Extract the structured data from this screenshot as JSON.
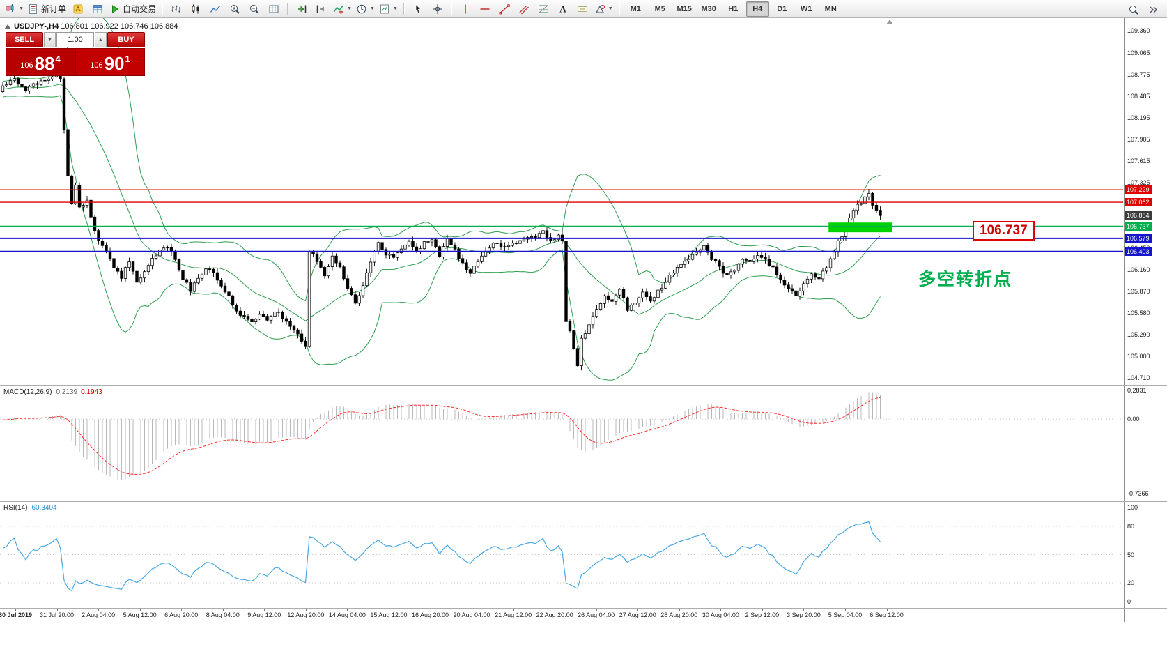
{
  "toolbar": {
    "items": [
      {
        "name": "new-chart",
        "icon": "candlechart",
        "dropdown": true
      },
      {
        "name": "new-order",
        "icon": "order",
        "label": "新订单"
      },
      {
        "name": "metaeditor",
        "icon": "editor"
      },
      {
        "name": "data-window",
        "icon": "datawin"
      },
      {
        "name": "autotrading",
        "icon": "play",
        "label": "自动交易"
      },
      {
        "sep": true
      },
      {
        "name": "bar-chart",
        "icon": "bars"
      },
      {
        "name": "candlestick-chart",
        "icon": "candles"
      },
      {
        "name": "line-chart",
        "icon": "linechart"
      },
      {
        "name": "zoom-in",
        "icon": "zoomin"
      },
      {
        "name": "zoom-out",
        "icon": "zoomout"
      },
      {
        "name": "tile-windows",
        "icon": "grid"
      },
      {
        "sep": true
      },
      {
        "name": "auto-scroll",
        "icon": "autoscroll"
      },
      {
        "name": "chart-shift",
        "icon": "shift"
      },
      {
        "name": "indicators",
        "icon": "indicator",
        "dropdown": true
      },
      {
        "name": "periods",
        "icon": "clock",
        "dropdown": true
      },
      {
        "name": "templates",
        "icon": "template",
        "dropdown": true
      },
      {
        "sep": true
      },
      {
        "name": "cursor",
        "icon": "cursor"
      },
      {
        "name": "crosshair",
        "icon": "crosshair"
      },
      {
        "sep": true
      },
      {
        "name": "vertical-line",
        "icon": "vline"
      },
      {
        "name": "horizontal-line",
        "icon": "hline"
      },
      {
        "name": "trendline",
        "icon": "tline"
      },
      {
        "name": "equidistant-channel",
        "icon": "channel"
      },
      {
        "name": "fibonacci",
        "icon": "fibo"
      },
      {
        "name": "text",
        "icon": "textA"
      },
      {
        "name": "text-label",
        "icon": "label"
      },
      {
        "name": "arrows",
        "icon": "shapes",
        "dropdown": true
      },
      {
        "sep": true
      }
    ],
    "timeframes": [
      "M1",
      "M5",
      "M15",
      "M30",
      "H1",
      "H4",
      "D1",
      "W1",
      "MN"
    ],
    "active_timeframe": "H4",
    "right_items": [
      {
        "name": "search",
        "icon": "search"
      },
      {
        "name": "toolbar-overflow",
        "icon": "chevrons"
      }
    ]
  },
  "chart": {
    "title": "USDJPY-,H4",
    "ohlc": "106.801 106.922 106.746 106.884"
  },
  "one_click": {
    "sell_label": "SELL",
    "buy_label": "BUY",
    "volume": "1.00",
    "bid": {
      "prefix": "106",
      "big": "88",
      "sup": "4"
    },
    "ask": {
      "prefix": "106",
      "big": "90",
      "sup": "1"
    }
  },
  "annotations": {
    "callout": "106.737",
    "note": "多空转折点",
    "highlight": {
      "bar_start": 215.5,
      "bar_end": 232,
      "price_top": 106.79,
      "price_bottom": 106.66,
      "color": "#00d200"
    }
  },
  "levels": [
    {
      "price": 107.229,
      "color": "#e00000",
      "width": 1.4
    },
    {
      "price": 107.062,
      "color": "#e00000",
      "width": 1.4
    },
    {
      "price": 106.737,
      "color": "#00b050",
      "width": 2.2
    },
    {
      "price": 106.579,
      "color": "#1515cd",
      "width": 2
    },
    {
      "price": 106.403,
      "color": "#1515cd",
      "width": 2
    }
  ],
  "price_scale": {
    "ticks": [
      "109.360",
      "109.065",
      "108.775",
      "108.485",
      "108.195",
      "107.905",
      "107.615",
      "107.325",
      "107.035",
      "106.745",
      "106.450",
      "106.160",
      "105.870",
      "105.580",
      "105.290",
      "105.000",
      "104.710"
    ],
    "tags": [
      {
        "text": "107.229",
        "price": 107.229,
        "color": "#e00000"
      },
      {
        "text": "107.062",
        "price": 107.062,
        "color": "#e00000"
      },
      {
        "text": "106.884",
        "price": 106.884,
        "color": "#3c3c3c"
      },
      {
        "text": "106.737",
        "price": 106.737,
        "color": "#00b050"
      },
      {
        "text": "106.579",
        "price": 106.579,
        "color": "#1515cd"
      },
      {
        "text": "106.403",
        "price": 106.403,
        "color": "#1515cd"
      }
    ]
  },
  "time_axis": {
    "labels": [
      "30 Jul 2019",
      "31 Jul 20:00",
      "2 Aug 04:00",
      "5 Aug 12:00",
      "6 Aug 20:00",
      "8 Aug 04:00",
      "9 Aug 12:00",
      "12 Aug 20:00",
      "14 Aug 04:00",
      "15 Aug 12:00",
      "16 Aug 20:00",
      "20 Aug 04:00",
      "21 Aug 12:00",
      "22 Aug 20:00",
      "26 Aug 04:00",
      "27 Aug 12:00",
      "28 Aug 20:00",
      "30 Aug 04:00",
      "2 Sep 12:00",
      "3 Sep 20:00",
      "5 Sep 04:00",
      "6 Sep 12:00"
    ]
  },
  "chart_data": {
    "type": "candlestick",
    "symbol": "USDJPY",
    "timeframe": "H4",
    "bars": 230,
    "price_axis_range": [
      104.71,
      109.36
    ],
    "last_close": 106.884,
    "price_path_format": "[bar_index, close_price] waypoints, linearly interpolated",
    "price_path": [
      [
        0,
        108.62
      ],
      [
        3,
        108.7
      ],
      [
        6,
        108.55
      ],
      [
        9,
        108.66
      ],
      [
        12,
        108.72
      ],
      [
        14,
        108.78
      ],
      [
        15,
        108.72
      ],
      [
        16,
        108.05
      ],
      [
        17,
        107.4
      ],
      [
        18,
        107.05
      ],
      [
        19,
        107.28
      ],
      [
        20,
        106.98
      ],
      [
        22,
        107.08
      ],
      [
        23,
        106.85
      ],
      [
        25,
        106.55
      ],
      [
        27,
        106.42
      ],
      [
        29,
        106.2
      ],
      [
        31,
        106.05
      ],
      [
        33,
        106.28
      ],
      [
        35,
        105.98
      ],
      [
        37,
        106.12
      ],
      [
        39,
        106.3
      ],
      [
        41,
        106.42
      ],
      [
        43,
        106.48
      ],
      [
        45,
        106.28
      ],
      [
        47,
        106.05
      ],
      [
        49,
        105.88
      ],
      [
        51,
        106.05
      ],
      [
        53,
        106.18
      ],
      [
        55,
        106.1
      ],
      [
        57,
        105.92
      ],
      [
        59,
        105.8
      ],
      [
        61,
        105.62
      ],
      [
        63,
        105.52
      ],
      [
        65,
        105.45
      ],
      [
        67,
        105.58
      ],
      [
        69,
        105.5
      ],
      [
        71,
        105.62
      ],
      [
        73,
        105.52
      ],
      [
        75,
        105.42
      ],
      [
        77,
        105.32
      ],
      [
        79,
        105.12
      ],
      [
        80,
        106.42
      ],
      [
        82,
        106.28
      ],
      [
        84,
        106.08
      ],
      [
        86,
        106.32
      ],
      [
        88,
        106.18
      ],
      [
        90,
        105.92
      ],
      [
        92,
        105.7
      ],
      [
        94,
        105.96
      ],
      [
        96,
        106.28
      ],
      [
        98,
        106.52
      ],
      [
        100,
        106.38
      ],
      [
        102,
        106.3
      ],
      [
        104,
        106.45
      ],
      [
        106,
        106.55
      ],
      [
        108,
        106.4
      ],
      [
        110,
        106.52
      ],
      [
        112,
        106.58
      ],
      [
        114,
        106.35
      ],
      [
        116,
        106.55
      ],
      [
        118,
        106.42
      ],
      [
        120,
        106.25
      ],
      [
        122,
        106.12
      ],
      [
        124,
        106.28
      ],
      [
        126,
        106.38
      ],
      [
        128,
        106.52
      ],
      [
        130,
        106.44
      ],
      [
        133,
        106.5
      ],
      [
        136,
        106.56
      ],
      [
        139,
        106.6
      ],
      [
        141,
        106.66
      ],
      [
        143,
        106.54
      ],
      [
        145,
        106.62
      ],
      [
        146,
        106.55
      ],
      [
        147,
        105.48
      ],
      [
        148,
        105.32
      ],
      [
        149,
        105.12
      ],
      [
        150,
        104.85
      ],
      [
        151,
        105.22
      ],
      [
        153,
        105.42
      ],
      [
        155,
        105.62
      ],
      [
        157,
        105.8
      ],
      [
        159,
        105.72
      ],
      [
        161,
        105.9
      ],
      [
        163,
        105.62
      ],
      [
        165,
        105.72
      ],
      [
        167,
        105.86
      ],
      [
        169,
        105.74
      ],
      [
        171,
        105.86
      ],
      [
        173,
        106.0
      ],
      [
        175,
        106.14
      ],
      [
        177,
        106.24
      ],
      [
        179,
        106.32
      ],
      [
        181,
        106.4
      ],
      [
        183,
        106.46
      ],
      [
        185,
        106.32
      ],
      [
        187,
        106.2
      ],
      [
        189,
        106.06
      ],
      [
        191,
        106.16
      ],
      [
        193,
        106.3
      ],
      [
        195,
        106.24
      ],
      [
        197,
        106.36
      ],
      [
        199,
        106.28
      ],
      [
        201,
        106.18
      ],
      [
        203,
        106.04
      ],
      [
        205,
        105.9
      ],
      [
        207,
        105.82
      ],
      [
        209,
        105.96
      ],
      [
        211,
        106.1
      ],
      [
        213,
        106.04
      ],
      [
        215,
        106.2
      ],
      [
        217,
        106.42
      ],
      [
        219,
        106.62
      ],
      [
        221,
        106.84
      ],
      [
        223,
        107.02
      ],
      [
        224,
        107.06
      ],
      [
        226,
        107.18
      ],
      [
        227,
        107.04
      ],
      [
        228,
        106.96
      ],
      [
        229,
        106.884
      ]
    ],
    "indicators": {
      "bollinger": {
        "period": 20,
        "deviation": 2,
        "color": "#2f9e4f"
      },
      "macd": {
        "name": "MACD(12,26,9)",
        "value_main": "0.2139",
        "value_signal": "0.1943",
        "range": [
          -0.7366,
          0.2831
        ],
        "axis_ticks": [
          {
            "text": "0.2831",
            "v": 0.2831
          },
          {
            "text": "0.00",
            "v": 0
          },
          {
            "text": "-0.7366",
            "v": -0.7366
          }
        ],
        "hist_color": "#b9b9b9",
        "signal_color": "#ff2a2a"
      },
      "rsi": {
        "name": "RSI(14)",
        "value": "60.3404",
        "period": 14,
        "axis_ticks": [
          100,
          80,
          50,
          20,
          0
        ],
        "levels": [
          80,
          50,
          20
        ],
        "line_color": "#47a8e5"
      }
    }
  },
  "colors": {
    "candle_up": "#ffffff",
    "candle_down": "#000000",
    "candle_border": "#000000",
    "accent_red": "#e00000",
    "accent_green": "#00b050",
    "accent_blue": "#1515cd"
  }
}
